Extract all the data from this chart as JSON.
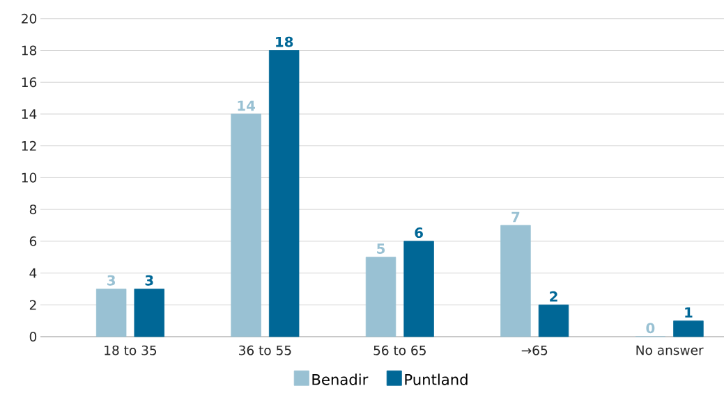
{
  "chart_data": {
    "type": "bar",
    "categories": [
      "18 to 35",
      "36 to 55",
      "56 to 65",
      "→65",
      "No answer"
    ],
    "series": [
      {
        "name": "Benadir",
        "color": "#99c1d3",
        "values": [
          3,
          14,
          5,
          7,
          0
        ]
      },
      {
        "name": "Puntland",
        "color": "#006796",
        "values": [
          3,
          18,
          6,
          2,
          1
        ]
      }
    ],
    "ylim": [
      0,
      20
    ],
    "yticks": [
      0,
      2,
      4,
      6,
      8,
      10,
      12,
      14,
      16,
      18,
      20
    ],
    "grid": "y",
    "legend": "bottom",
    "data_labels": true
  }
}
